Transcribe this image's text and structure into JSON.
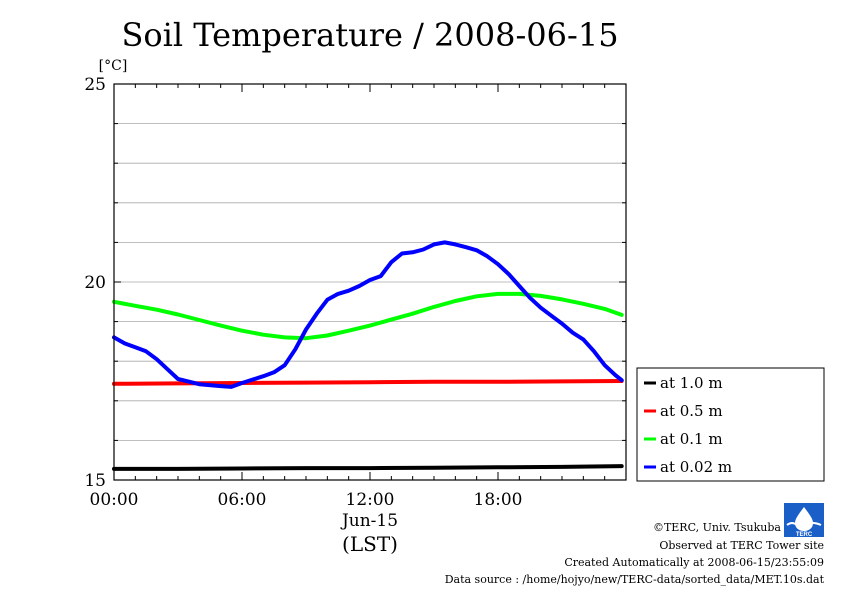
{
  "chart_data": {
    "type": "line",
    "title": "Soil Temperature / 2008-06-15",
    "y_unit": "[°C]",
    "ylim": [
      15,
      25
    ],
    "y_ticks": [
      "25",
      "20",
      "15"
    ],
    "xlim": [
      0,
      24
    ],
    "x_ticks": [
      "00:00",
      "06:00",
      "12:00",
      "18:00"
    ],
    "x_date_label": "Jun-15",
    "x_axis_label": "(LST)",
    "grid": true,
    "legend_position": "right",
    "series": [
      {
        "name": "at 1.0 m",
        "color": "#000000",
        "x": [
          0,
          3,
          6,
          9,
          12,
          15,
          18,
          21,
          23.8
        ],
        "y": [
          15.28,
          15.28,
          15.29,
          15.3,
          15.3,
          15.31,
          15.32,
          15.33,
          15.35
        ]
      },
      {
        "name": "at 0.5 m",
        "color": "#ff0000",
        "x": [
          0,
          3,
          6,
          9,
          12,
          15,
          18,
          21,
          23.8
        ],
        "y": [
          17.43,
          17.44,
          17.45,
          17.46,
          17.47,
          17.48,
          17.48,
          17.49,
          17.5
        ]
      },
      {
        "name": "at 0.1 m",
        "color": "#00ff00",
        "x": [
          0,
          1,
          2,
          3,
          4,
          5,
          6,
          7,
          8,
          9,
          10,
          11,
          12,
          13,
          14,
          15,
          16,
          17,
          18,
          19,
          20,
          21,
          22,
          23,
          23.8
        ],
        "y": [
          19.5,
          19.4,
          19.3,
          19.18,
          19.04,
          18.9,
          18.77,
          18.67,
          18.6,
          18.58,
          18.65,
          18.77,
          18.9,
          19.05,
          19.2,
          19.37,
          19.52,
          19.64,
          19.7,
          19.7,
          19.65,
          19.56,
          19.45,
          19.32,
          19.17
        ]
      },
      {
        "name": "at 0.02 m",
        "color": "#0000ff",
        "x": [
          0,
          0.5,
          1,
          1.5,
          2,
          2.5,
          3,
          4,
          5,
          5.5,
          6,
          7,
          7.5,
          8,
          8.5,
          9,
          9.5,
          10,
          10.5,
          11,
          11.5,
          12,
          12.5,
          13,
          13.5,
          14,
          14.5,
          15,
          15.5,
          16,
          16.5,
          17,
          17.5,
          18,
          18.5,
          19,
          19.5,
          20,
          20.5,
          21,
          21.5,
          22,
          22.5,
          23,
          23.5,
          23.8
        ],
        "y": [
          18.6,
          18.45,
          18.35,
          18.25,
          18.05,
          17.8,
          17.55,
          17.42,
          17.37,
          17.35,
          17.45,
          17.62,
          17.72,
          17.9,
          18.3,
          18.8,
          19.2,
          19.55,
          19.7,
          19.78,
          19.9,
          20.05,
          20.15,
          20.5,
          20.72,
          20.75,
          20.82,
          20.95,
          21.0,
          20.95,
          20.88,
          20.8,
          20.65,
          20.45,
          20.2,
          19.9,
          19.6,
          19.35,
          19.15,
          18.95,
          18.72,
          18.55,
          18.25,
          17.9,
          17.65,
          17.52
        ]
      }
    ]
  },
  "footer": {
    "copyright": "©TERC, Univ. Tsukuba",
    "observed": "Observed at TERC Tower site",
    "created": "Created Automatically at 2008-06-15/23:55:09",
    "source": "Data source : /home/hojyo/new/TERC-data/sorted_data/MET.10s.dat"
  },
  "logo": {
    "text": "TERC",
    "color": "#1a5fc8"
  }
}
